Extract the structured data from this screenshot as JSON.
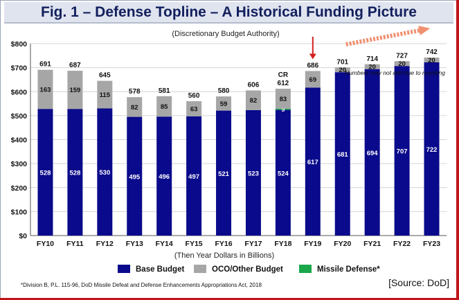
{
  "title": "Fig. 1 – Defense Topline – A Historical Funding Picture",
  "source_label": "[Source: DoD]",
  "chart_data": {
    "type": "bar",
    "stacked": true,
    "subtitle": "(Discretionary Budget Authority)",
    "xlabel": "(Then Year Dollars in Billions)",
    "ylabel": "",
    "ylim": [
      0,
      800
    ],
    "yticks": [
      "$0",
      "$100",
      "$200",
      "$300",
      "$400",
      "$500",
      "$600",
      "$700",
      "$800"
    ],
    "grid": true,
    "categories": [
      "FY10",
      "FY11",
      "FY12",
      "FY13",
      "FY14",
      "FY15",
      "FY16",
      "FY17",
      "FY18",
      "FY19",
      "FY20",
      "FY21",
      "FY22",
      "FY23"
    ],
    "series": [
      {
        "name": "Base Budget",
        "color": "#0a0a8c",
        "values": [
          528,
          528,
          530,
          495,
          496,
          497,
          521,
          523,
          524,
          617,
          681,
          694,
          707,
          722
        ]
      },
      {
        "name": "Missile Defense*",
        "color": "#1aa84a",
        "values": [
          null,
          null,
          null,
          null,
          null,
          null,
          null,
          null,
          5,
          null,
          null,
          null,
          null,
          null
        ]
      },
      {
        "name": "OCO/Other  Budget",
        "color": "#a6a6a6",
        "values": [
          163,
          159,
          115,
          82,
          85,
          63,
          59,
          82,
          83,
          69,
          20,
          20,
          20,
          20
        ]
      }
    ],
    "totals": [
      691,
      687,
      645,
      578,
      581,
      560,
      580,
      606,
      612,
      686,
      701,
      714,
      727,
      742
    ],
    "annotations": {
      "cr_label": "CR",
      "rounding_note": "Numbers may not add due to rounding",
      "footnote": "*Division B, P.L. 115-96, DoD Missile Defeat and Defense Enhancements Appropriations Act, 2018",
      "highlight_bar": "FY19",
      "trend_arrow": "FY20-FY23 upward"
    },
    "legend_position": "bottom"
  },
  "colors": {
    "base": "#0a0a8c",
    "oco": "#a6a6a6",
    "missile": "#1aa84a",
    "title_text": "#121f5c",
    "title_bg": "#dfe4ef",
    "arrow_red": "#d42020",
    "arrow_orange": "#f09070",
    "border_red": "#c0141a"
  }
}
